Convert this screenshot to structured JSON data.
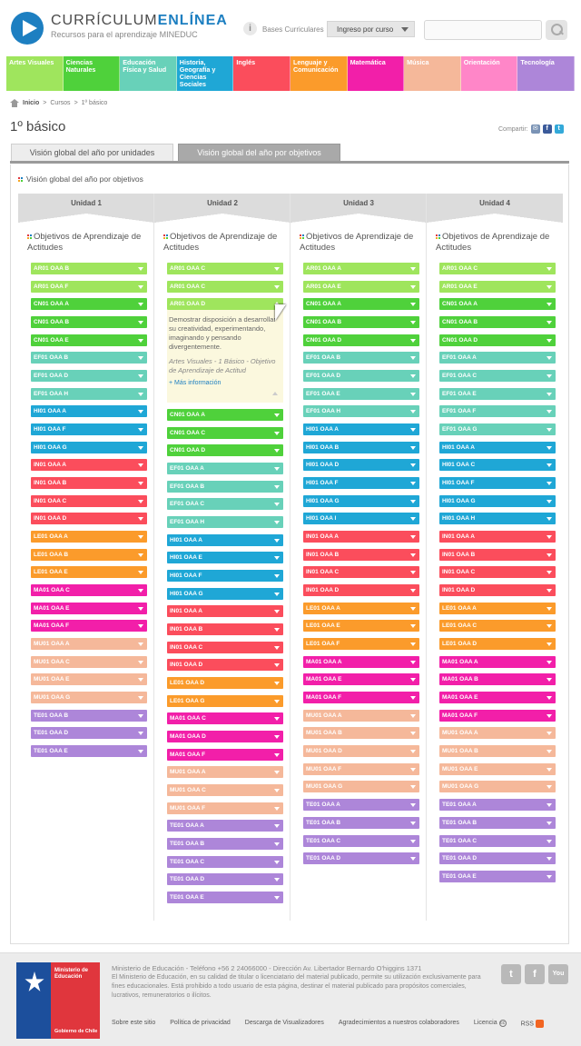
{
  "brand": {
    "title_prefix": "CURRÍCULUM",
    "title_suffix": "ENLÍNEA",
    "subtitle": "Recursos para el aprendizaje MINEDUC"
  },
  "header": {
    "bases_label": "Bases Curriculares",
    "ingreso_label": "Ingreso por curso",
    "search_placeholder": ""
  },
  "subjects": [
    {
      "label": "Artes Visuales",
      "color": "#9fe55d"
    },
    {
      "label": "Ciencias Naturales",
      "color": "#4fd13b"
    },
    {
      "label": "Educación Física y Salud",
      "color": "#68d1b9"
    },
    {
      "label": "Historia, Geografía y Ciencias Sociales",
      "color": "#1fa7d6"
    },
    {
      "label": "Inglés",
      "color": "#fb4d5c"
    },
    {
      "label": "Lenguaje y Comunicación",
      "color": "#fb9b2b"
    },
    {
      "label": "Matemática",
      "color": "#f21fa9"
    },
    {
      "label": "Música",
      "color": "#f5b89a"
    },
    {
      "label": "Orientación",
      "color": "#ff86c8"
    },
    {
      "label": "Tecnología",
      "color": "#ad86d9"
    }
  ],
  "breadcrumb": {
    "home": "Inicio",
    "sep": ">",
    "cursos": "Cursos",
    "current": "1º básico"
  },
  "page_title": "1º básico",
  "share_label": "Compartir:",
  "tabs": {
    "units": "Visión global del año por unidades",
    "objectives": "Visión global del año por objetivos"
  },
  "panel_title": "Visión global del año por objetivos",
  "objectives_title": "Objetivos de Aprendizaje de Actitudes",
  "expanded": {
    "text": "Demostrar disposición a desarrollar su creatividad, experimentando, imaginando y pensando divergentemente.",
    "meta": "Artes Visuales - 1 Básico - Objetivo de Aprendizaje de Actitud",
    "more": "+ Más información"
  },
  "units": [
    {
      "label": "Unidad 1",
      "items": [
        {
          "code": "AR01 OAA B",
          "color": "#9fe55d"
        },
        {
          "code": "AR01 OAA F",
          "color": "#9fe55d"
        },
        {
          "code": "CN01 OAA A",
          "color": "#4fd13b"
        },
        {
          "code": "CN01 OAA B",
          "color": "#4fd13b"
        },
        {
          "code": "CN01 OAA E",
          "color": "#4fd13b"
        },
        {
          "code": "EF01 OAA B",
          "color": "#68d1b9"
        },
        {
          "code": "EF01 OAA D",
          "color": "#68d1b9"
        },
        {
          "code": "EF01 OAA H",
          "color": "#68d1b9"
        },
        {
          "code": "HI01 OAA A",
          "color": "#1fa7d6"
        },
        {
          "code": "HI01 OAA F",
          "color": "#1fa7d6"
        },
        {
          "code": "HI01 OAA G",
          "color": "#1fa7d6"
        },
        {
          "code": "IN01 OAA A",
          "color": "#fb4d5c"
        },
        {
          "code": "IN01 OAA B",
          "color": "#fb4d5c"
        },
        {
          "code": "IN01 OAA C",
          "color": "#fb4d5c"
        },
        {
          "code": "IN01 OAA D",
          "color": "#fb4d5c"
        },
        {
          "code": "LE01 OAA A",
          "color": "#fb9b2b"
        },
        {
          "code": "LE01 OAA B",
          "color": "#fb9b2b"
        },
        {
          "code": "LE01 OAA E",
          "color": "#fb9b2b"
        },
        {
          "code": "MA01 OAA C",
          "color": "#f21fa9"
        },
        {
          "code": "MA01 OAA E",
          "color": "#f21fa9"
        },
        {
          "code": "MA01 OAA F",
          "color": "#f21fa9"
        },
        {
          "code": "MU01 OAA A",
          "color": "#f5b89a"
        },
        {
          "code": "MU01 OAA C",
          "color": "#f5b89a"
        },
        {
          "code": "MU01 OAA E",
          "color": "#f5b89a"
        },
        {
          "code": "MU01 OAA G",
          "color": "#f5b89a"
        },
        {
          "code": "TE01 OAA B",
          "color": "#ad86d9"
        },
        {
          "code": "TE01 OAA D",
          "color": "#ad86d9"
        },
        {
          "code": "TE01 OAA E",
          "color": "#ad86d9"
        }
      ]
    },
    {
      "label": "Unidad 2",
      "items": [
        {
          "code": "AR01 OAA C",
          "color": "#9fe55d"
        },
        {
          "code": "AR01 OAA C",
          "color": "#9fe55d"
        },
        {
          "code": "AR01 OAA D",
          "color": "#9fe55d",
          "expanded": true
        },
        {
          "code": "CN01 OAA A",
          "color": "#4fd13b"
        },
        {
          "code": "CN01 OAA C",
          "color": "#4fd13b"
        },
        {
          "code": "CN01 OAA D",
          "color": "#4fd13b"
        },
        {
          "code": "EF01 OAA A",
          "color": "#68d1b9"
        },
        {
          "code": "EF01 OAA B",
          "color": "#68d1b9"
        },
        {
          "code": "EF01 OAA C",
          "color": "#68d1b9"
        },
        {
          "code": "EF01 OAA H",
          "color": "#68d1b9"
        },
        {
          "code": "HI01 OAA A",
          "color": "#1fa7d6"
        },
        {
          "code": "HI01 OAA E",
          "color": "#1fa7d6"
        },
        {
          "code": "HI01 OAA F",
          "color": "#1fa7d6"
        },
        {
          "code": "HI01 OAA G",
          "color": "#1fa7d6"
        },
        {
          "code": "IN01 OAA A",
          "color": "#fb4d5c"
        },
        {
          "code": "IN01 OAA B",
          "color": "#fb4d5c"
        },
        {
          "code": "IN01 OAA C",
          "color": "#fb4d5c"
        },
        {
          "code": "IN01 OAA D",
          "color": "#fb4d5c"
        },
        {
          "code": "LE01 OAA D",
          "color": "#fb9b2b"
        },
        {
          "code": "LE01 OAA G",
          "color": "#fb9b2b"
        },
        {
          "code": "MA01 OAA C",
          "color": "#f21fa9"
        },
        {
          "code": "MA01 OAA D",
          "color": "#f21fa9"
        },
        {
          "code": "MA01 OAA F",
          "color": "#f21fa9"
        },
        {
          "code": "MU01 OAA A",
          "color": "#f5b89a"
        },
        {
          "code": "MU01 OAA C",
          "color": "#f5b89a"
        },
        {
          "code": "MU01 OAA F",
          "color": "#f5b89a"
        },
        {
          "code": "TE01 OAA A",
          "color": "#ad86d9"
        },
        {
          "code": "TE01 OAA B",
          "color": "#ad86d9"
        },
        {
          "code": "TE01 OAA C",
          "color": "#ad86d9"
        },
        {
          "code": "TE01 OAA D",
          "color": "#ad86d9"
        },
        {
          "code": "TE01 OAA E",
          "color": "#ad86d9"
        }
      ]
    },
    {
      "label": "Unidad 3",
      "items": [
        {
          "code": "AR01 OAA A",
          "color": "#9fe55d"
        },
        {
          "code": "AR01 OAA E",
          "color": "#9fe55d"
        },
        {
          "code": "CN01 OAA A",
          "color": "#4fd13b"
        },
        {
          "code": "CN01 OAA B",
          "color": "#4fd13b"
        },
        {
          "code": "CN01 OAA D",
          "color": "#4fd13b"
        },
        {
          "code": "EF01 OAA B",
          "color": "#68d1b9"
        },
        {
          "code": "EF01 OAA D",
          "color": "#68d1b9"
        },
        {
          "code": "EF01 OAA E",
          "color": "#68d1b9"
        },
        {
          "code": "EF01 OAA H",
          "color": "#68d1b9"
        },
        {
          "code": "HI01 OAA A",
          "color": "#1fa7d6"
        },
        {
          "code": "HI01 OAA B",
          "color": "#1fa7d6"
        },
        {
          "code": "HI01 OAA D",
          "color": "#1fa7d6"
        },
        {
          "code": "HI01 OAA F",
          "color": "#1fa7d6"
        },
        {
          "code": "HI01 OAA G",
          "color": "#1fa7d6"
        },
        {
          "code": "HI01 OAA I",
          "color": "#1fa7d6"
        },
        {
          "code": "IN01 OAA A",
          "color": "#fb4d5c"
        },
        {
          "code": "IN01 OAA B",
          "color": "#fb4d5c"
        },
        {
          "code": "IN01 OAA C",
          "color": "#fb4d5c"
        },
        {
          "code": "IN01 OAA D",
          "color": "#fb4d5c"
        },
        {
          "code": "LE01 OAA A",
          "color": "#fb9b2b"
        },
        {
          "code": "LE01 OAA E",
          "color": "#fb9b2b"
        },
        {
          "code": "LE01 OAA F",
          "color": "#fb9b2b"
        },
        {
          "code": "MA01 OAA A",
          "color": "#f21fa9"
        },
        {
          "code": "MA01 OAA E",
          "color": "#f21fa9"
        },
        {
          "code": "MA01 OAA F",
          "color": "#f21fa9"
        },
        {
          "code": "MU01 OAA A",
          "color": "#f5b89a"
        },
        {
          "code": "MU01 OAA B",
          "color": "#f5b89a"
        },
        {
          "code": "MU01 OAA D",
          "color": "#f5b89a"
        },
        {
          "code": "MU01 OAA F",
          "color": "#f5b89a"
        },
        {
          "code": "MU01 OAA G",
          "color": "#f5b89a"
        },
        {
          "code": "TE01 OAA A",
          "color": "#ad86d9"
        },
        {
          "code": "TE01 OAA B",
          "color": "#ad86d9"
        },
        {
          "code": "TE01 OAA C",
          "color": "#ad86d9"
        },
        {
          "code": "TE01 OAA D",
          "color": "#ad86d9"
        }
      ]
    },
    {
      "label": "Unidad 4",
      "items": [
        {
          "code": "AR01 OAA C",
          "color": "#9fe55d"
        },
        {
          "code": "AR01 OAA E",
          "color": "#9fe55d"
        },
        {
          "code": "CN01 OAA A",
          "color": "#4fd13b"
        },
        {
          "code": "CN01 OAA B",
          "color": "#4fd13b"
        },
        {
          "code": "CN01 OAA D",
          "color": "#4fd13b"
        },
        {
          "code": "EF01 OAA A",
          "color": "#68d1b9"
        },
        {
          "code": "EF01 OAA C",
          "color": "#68d1b9"
        },
        {
          "code": "EF01 OAA E",
          "color": "#68d1b9"
        },
        {
          "code": "EF01 OAA F",
          "color": "#68d1b9"
        },
        {
          "code": "EF01 OAA G",
          "color": "#68d1b9"
        },
        {
          "code": "HI01 OAA A",
          "color": "#1fa7d6"
        },
        {
          "code": "HI01 OAA C",
          "color": "#1fa7d6"
        },
        {
          "code": "HI01 OAA F",
          "color": "#1fa7d6"
        },
        {
          "code": "HI01 OAA G",
          "color": "#1fa7d6"
        },
        {
          "code": "HI01 OAA H",
          "color": "#1fa7d6"
        },
        {
          "code": "IN01 OAA A",
          "color": "#fb4d5c"
        },
        {
          "code": "IN01 OAA B",
          "color": "#fb4d5c"
        },
        {
          "code": "IN01 OAA C",
          "color": "#fb4d5c"
        },
        {
          "code": "IN01 OAA D",
          "color": "#fb4d5c"
        },
        {
          "code": "LE01 OAA A",
          "color": "#fb9b2b"
        },
        {
          "code": "LE01 OAA C",
          "color": "#fb9b2b"
        },
        {
          "code": "LE01 OAA D",
          "color": "#fb9b2b"
        },
        {
          "code": "MA01 OAA A",
          "color": "#f21fa9"
        },
        {
          "code": "MA01 OAA B",
          "color": "#f21fa9"
        },
        {
          "code": "MA01 OAA E",
          "color": "#f21fa9"
        },
        {
          "code": "MA01 OAA F",
          "color": "#f21fa9"
        },
        {
          "code": "MU01 OAA A",
          "color": "#f5b89a"
        },
        {
          "code": "MU01 OAA B",
          "color": "#f5b89a"
        },
        {
          "code": "MU01 OAA E",
          "color": "#f5b89a"
        },
        {
          "code": "MU01 OAA G",
          "color": "#f5b89a"
        },
        {
          "code": "TE01 OAA A",
          "color": "#ad86d9"
        },
        {
          "code": "TE01 OAA B",
          "color": "#ad86d9"
        },
        {
          "code": "TE01 OAA C",
          "color": "#ad86d9"
        },
        {
          "code": "TE01 OAA D",
          "color": "#ad86d9"
        },
        {
          "code": "TE01 OAA E",
          "color": "#ad86d9"
        }
      ]
    }
  ],
  "footer": {
    "gob_ministry": "Ministerio de Educación",
    "gob_gov": "Gobierno de Chile",
    "line1": "Ministerio de Educación - Teléfono +56 2 24066000 - Dirección Av. Libertador Bernardo O'higgins 1371",
    "line2": "El Ministerio de Educación, en su calidad de titular o licenciatario del material publicado, permite su utilización exclusivamente para fines educacionales. Está prohibido a todo usuario de esta página, destinar el material publicado para propósitos comerciales, lucrativos, remuneratorios o ilícitos.",
    "links": [
      "Sobre este sitio",
      "Política de privacidad",
      "Descarga de Visualizadores",
      "Agradecimientos a nuestros colaboradores",
      "Licencia",
      "RSS"
    ]
  }
}
